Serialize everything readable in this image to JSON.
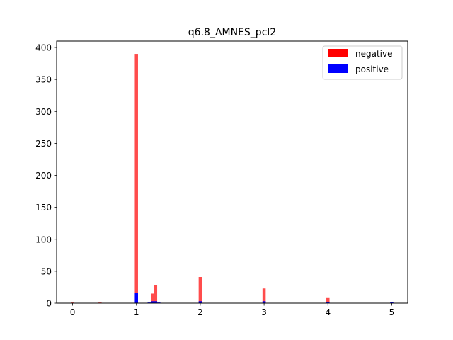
{
  "chart_data": {
    "type": "bar",
    "title": "q6.8_AMNES_pcl2",
    "xlabel": "",
    "ylabel": "",
    "xlim": [
      -0.25,
      5.25
    ],
    "ylim": [
      0,
      410
    ],
    "xticks": [
      0,
      1,
      2,
      3,
      4,
      5
    ],
    "yticks": [
      0,
      50,
      100,
      150,
      200,
      250,
      300,
      350,
      400
    ],
    "bin_width": 0.05,
    "legend_position": "top-right",
    "series": [
      {
        "name": "negative",
        "color": "#ff0000",
        "alpha": 0.7,
        "bars": [
          {
            "x": 0.0,
            "value": 1
          },
          {
            "x": 0.43,
            "value": 1
          },
          {
            "x": 1.0,
            "value": 390
          },
          {
            "x": 1.25,
            "value": 15
          },
          {
            "x": 1.3,
            "value": 28
          },
          {
            "x": 2.0,
            "value": 41
          },
          {
            "x": 3.0,
            "value": 23
          },
          {
            "x": 4.0,
            "value": 8
          }
        ]
      },
      {
        "name": "positive",
        "color": "#0000ff",
        "alpha": 1.0,
        "bars": [
          {
            "x": 1.0,
            "value": 16
          },
          {
            "x": 1.2,
            "value": 1
          },
          {
            "x": 1.25,
            "value": 3
          },
          {
            "x": 1.3,
            "value": 3
          },
          {
            "x": 1.35,
            "value": 1
          },
          {
            "x": 2.0,
            "value": 3
          },
          {
            "x": 3.0,
            "value": 3
          },
          {
            "x": 4.0,
            "value": 2
          },
          {
            "x": 5.0,
            "value": 2
          }
        ]
      }
    ]
  }
}
